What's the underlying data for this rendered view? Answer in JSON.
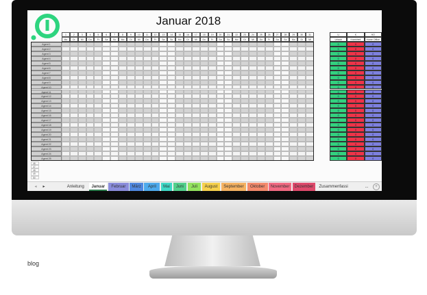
{
  "title": "Januar 2018",
  "days": [
    {
      "n": "1",
      "w": "Mo"
    },
    {
      "n": "2",
      "w": "Di"
    },
    {
      "n": "3",
      "w": "Mi"
    },
    {
      "n": "4",
      "w": "Do"
    },
    {
      "n": "5",
      "w": "Fr"
    },
    {
      "n": "6",
      "w": "Sa"
    },
    {
      "n": "7",
      "w": "So"
    },
    {
      "n": "8",
      "w": "Mo"
    },
    {
      "n": "9",
      "w": "Di"
    },
    {
      "n": "10",
      "w": "Mi"
    },
    {
      "n": "11",
      "w": "Do"
    },
    {
      "n": "12",
      "w": "Fr"
    },
    {
      "n": "13",
      "w": "Sa"
    },
    {
      "n": "14",
      "w": "So"
    },
    {
      "n": "15",
      "w": "Mo"
    },
    {
      "n": "16",
      "w": "Di"
    },
    {
      "n": "17",
      "w": "Mi"
    },
    {
      "n": "18",
      "w": "Do"
    },
    {
      "n": "19",
      "w": "Fr"
    },
    {
      "n": "20",
      "w": "Sa"
    },
    {
      "n": "21",
      "w": "So"
    },
    {
      "n": "22",
      "w": "Mo"
    },
    {
      "n": "23",
      "w": "Di"
    },
    {
      "n": "24",
      "w": "Mi"
    },
    {
      "n": "25",
      "w": "Do"
    },
    {
      "n": "26",
      "w": "Fr"
    },
    {
      "n": "27",
      "w": "Sa"
    },
    {
      "n": "28",
      "w": "So"
    },
    {
      "n": "29",
      "w": "Mo"
    },
    {
      "n": "30",
      "w": "Di"
    },
    {
      "n": "31",
      "w": "Mi"
    }
  ],
  "agents": [
    "Agent 1",
    "Agent 2",
    "Agent 3",
    "Agent 4",
    "Agent 5",
    "Agent 6",
    "Agent 7",
    "Agent 8",
    "Agent 9",
    "Agent 10",
    "Agent 11",
    "Agent 12",
    "Agent 13",
    "Agent 14",
    "Agent 15",
    "Agent 16",
    "Agent 17",
    "Agent 18",
    "Agent 19",
    "Agent 20",
    "Agent 21",
    "Agent 22",
    "Agent 23",
    "Agent 24",
    "Agent 25"
  ],
  "extra_rows": [
    "46",
    "47",
    "48",
    "49",
    "50"
  ],
  "summary": {
    "columns": [
      {
        "code": "U",
        "label": "Urlaub",
        "color": "#33d17f"
      },
      {
        "code": "K",
        "label": "Krankheit",
        "color": "#ee3448"
      },
      {
        "code": "HO",
        "label": "Home Office",
        "color": "#7d80dd"
      }
    ],
    "value": "0"
  },
  "tabs": {
    "nav_prev": "◂",
    "nav_next": "▸",
    "items": [
      {
        "label": "Anleitung",
        "color": "#efefef"
      },
      {
        "label": "Januar",
        "color": "#ffffff",
        "active": true
      },
      {
        "label": "Februar",
        "color": "#8b8ddc"
      },
      {
        "label": "März",
        "color": "#5088e0"
      },
      {
        "label": "April",
        "color": "#4eaaec"
      },
      {
        "label": "Mai",
        "color": "#3fd8c6"
      },
      {
        "label": "Juni",
        "color": "#52d08c"
      },
      {
        "label": "Juli",
        "color": "#93e25e"
      },
      {
        "label": "August",
        "color": "#f6d04c"
      },
      {
        "label": "September",
        "color": "#f5b262"
      },
      {
        "label": "Oktober",
        "color": "#f48a6c"
      },
      {
        "label": "November",
        "color": "#f26a82"
      },
      {
        "label": "Dezember",
        "color": "#df4a6c"
      },
      {
        "label": "Zusammenfassi",
        "color": "#efefef"
      }
    ],
    "more": "...",
    "add": "+"
  },
  "caption": "blog",
  "logo_color": "#2ed47f"
}
